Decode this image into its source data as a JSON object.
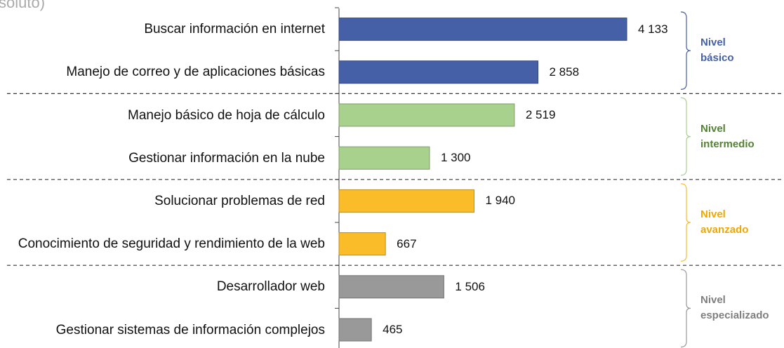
{
  "chart_data": {
    "type": "bar",
    "orientation": "horizontal",
    "title": "soluto)",
    "xlim": [
      0,
      5000
    ],
    "groups": [
      {
        "name": "Nivel básico",
        "color": "#4560a6",
        "categories": [
          "Buscar información en internet",
          "Manejo de correo y de aplicaciones básicas"
        ],
        "values": [
          4133,
          2858
        ],
        "value_labels": [
          "4 133",
          "2 858"
        ]
      },
      {
        "name": "Nivel intermedio",
        "color": "#a9d18e",
        "label_color": "#548235",
        "categories": [
          "Manejo básico de hoja de cálculo",
          "Gestionar información en la nube"
        ],
        "values": [
          2519,
          1300
        ],
        "value_labels": [
          "2 519",
          "1 300"
        ]
      },
      {
        "name": "Nivel avanzado",
        "color": "#fbbc2a",
        "label_color": "#f0a800",
        "categories": [
          "Solucionar problemas de red",
          "Conocimiento de seguridad y rendimiento de la web"
        ],
        "values": [
          1940,
          667
        ],
        "value_labels": [
          "1 940",
          "667"
        ]
      },
      {
        "name": "Nivel especializado",
        "color": "#999999",
        "label_color": "#7f7f7f",
        "categories": [
          "Desarrollador web",
          "Gestionar sistemas de información complejos"
        ],
        "values": [
          1506,
          465
        ],
        "value_labels": [
          "1 506",
          "465"
        ]
      }
    ]
  }
}
